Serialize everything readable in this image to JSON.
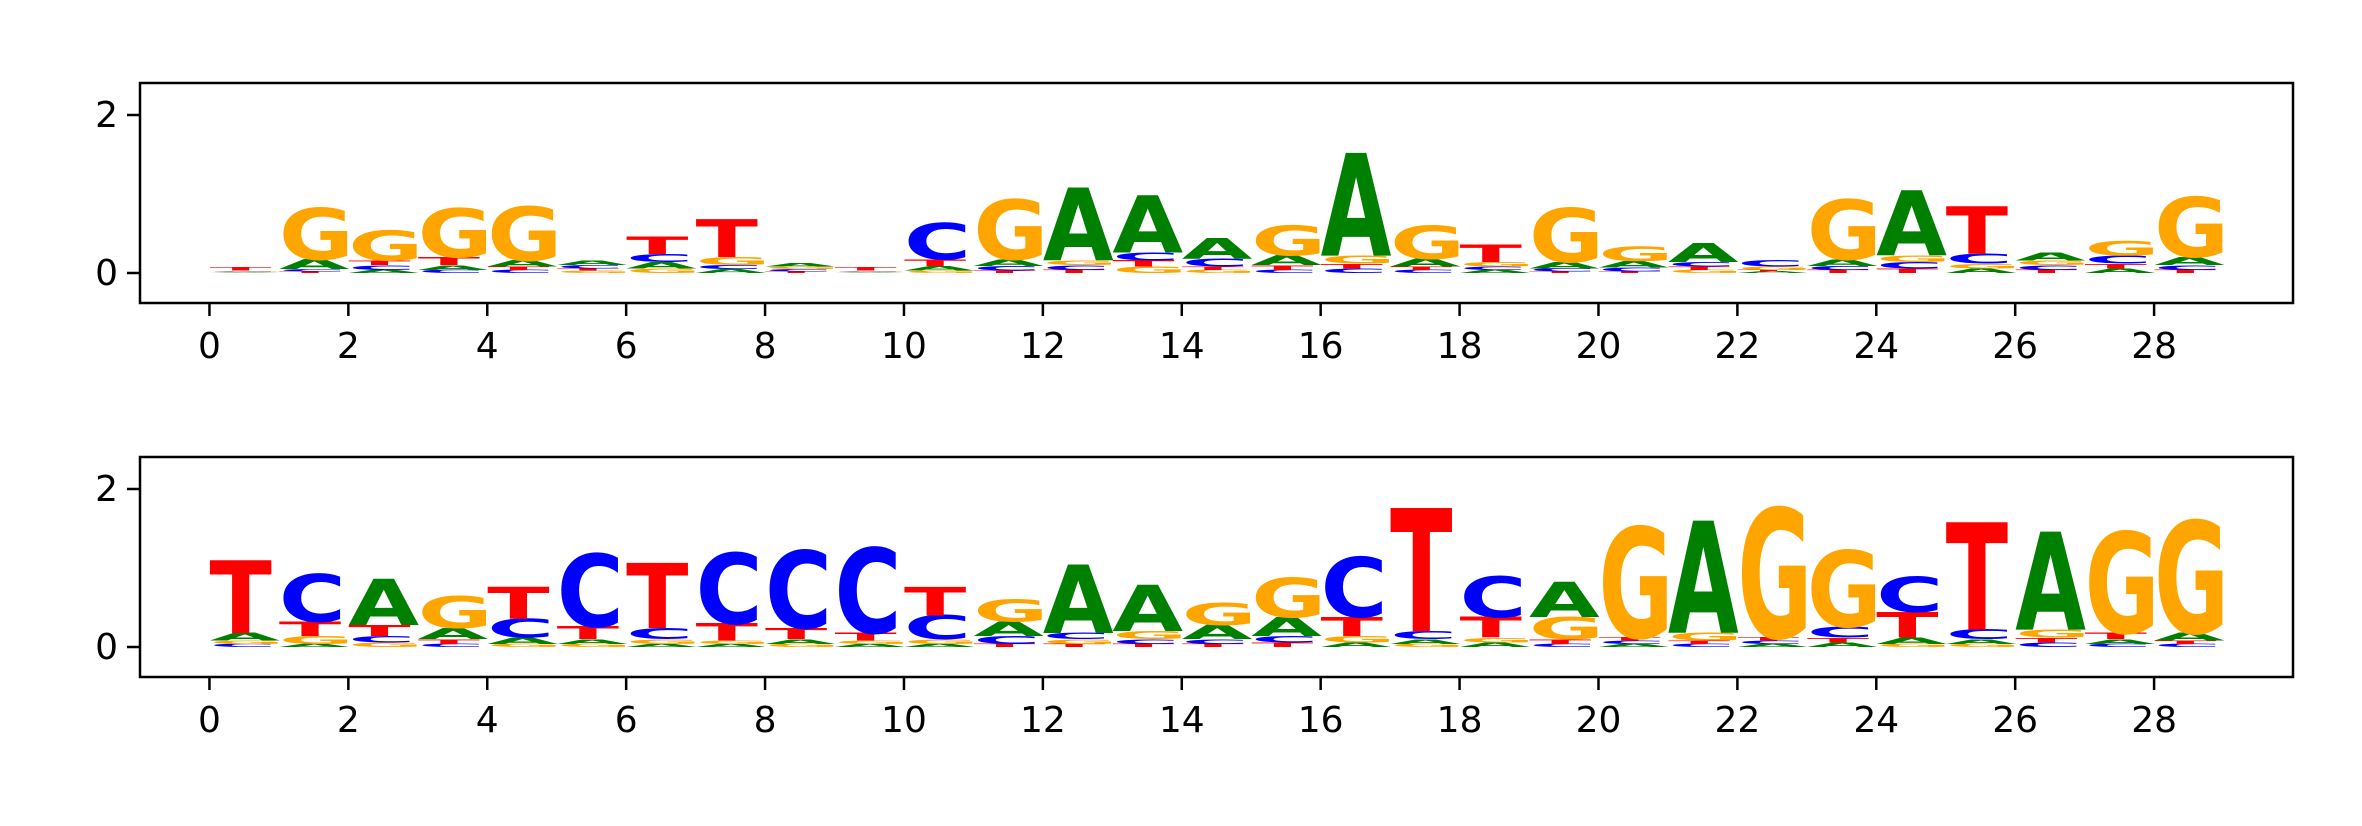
{
  "colors": {
    "A": "#008000",
    "C": "#0000ff",
    "G": "#ffa500",
    "T": "#ff0000"
  },
  "chart_data": [
    {
      "type": "sequence-logo",
      "panel": "top",
      "xlabel": "",
      "ylabel": "",
      "xlim": [
        -1,
        30
      ],
      "ylim": [
        -0.4,
        2.4
      ],
      "xticks": [
        "0",
        "2",
        "4",
        "6",
        "8",
        "10",
        "12",
        "14",
        "16",
        "18",
        "20",
        "22",
        "24",
        "26",
        "28"
      ],
      "yticks": [
        "0",
        "2"
      ],
      "positions": [
        [
          [
            "A",
            0.01
          ],
          [
            "C",
            0.01
          ],
          [
            "G",
            0.01
          ],
          [
            "T",
            0.04
          ]
        ],
        [
          [
            "A",
            0.12
          ],
          [
            "C",
            0.03
          ],
          [
            "G",
            0.65
          ],
          [
            "T",
            0.02
          ]
        ],
        [
          [
            "A",
            0.04
          ],
          [
            "C",
            0.06
          ],
          [
            "G",
            0.38
          ],
          [
            "T",
            0.06
          ]
        ],
        [
          [
            "A",
            0.06
          ],
          [
            "C",
            0.04
          ],
          [
            "G",
            0.62
          ],
          [
            "T",
            0.1
          ]
        ],
        [
          [
            "A",
            0.08
          ],
          [
            "C",
            0.04
          ],
          [
            "G",
            0.68
          ],
          [
            "T",
            0.04
          ]
        ],
        [
          [
            "A",
            0.06
          ],
          [
            "C",
            0.04
          ],
          [
            "G",
            0.03
          ],
          [
            "T",
            0.03
          ]
        ],
        [
          [
            "A",
            0.08
          ],
          [
            "C",
            0.1
          ],
          [
            "G",
            0.06
          ],
          [
            "T",
            0.22
          ]
        ],
        [
          [
            "A",
            0.05
          ],
          [
            "C",
            0.05
          ],
          [
            "G",
            0.1
          ],
          [
            "T",
            0.48
          ]
        ],
        [
          [
            "A",
            0.04
          ],
          [
            "C",
            0.03
          ],
          [
            "G",
            0.03
          ],
          [
            "T",
            0.02
          ]
        ],
        [
          [
            "A",
            0.01
          ],
          [
            "C",
            0.01
          ],
          [
            "G",
            0.01
          ],
          [
            "T",
            0.04
          ]
        ],
        [
          [
            "A",
            0.06
          ],
          [
            "C",
            0.46
          ],
          [
            "G",
            0.03
          ],
          [
            "T",
            0.08
          ]
        ],
        [
          [
            "A",
            0.08
          ],
          [
            "C",
            0.06
          ],
          [
            "G",
            0.76
          ],
          [
            "T",
            0.03
          ]
        ],
        [
          [
            "A",
            0.92
          ],
          [
            "C",
            0.06
          ],
          [
            "G",
            0.06
          ],
          [
            "T",
            0.04
          ]
        ],
        [
          [
            "A",
            0.72
          ],
          [
            "C",
            0.1
          ],
          [
            "G",
            0.08
          ],
          [
            "T",
            0.08
          ]
        ],
        [
          [
            "A",
            0.26
          ],
          [
            "C",
            0.1
          ],
          [
            "G",
            0.04
          ],
          [
            "T",
            0.04
          ]
        ],
        [
          [
            "A",
            0.12
          ],
          [
            "C",
            0.04
          ],
          [
            "G",
            0.38
          ],
          [
            "T",
            0.06
          ]
        ],
        [
          [
            "A",
            1.3
          ],
          [
            "C",
            0.06
          ],
          [
            "G",
            0.1
          ],
          [
            "T",
            0.06
          ]
        ],
        [
          [
            "A",
            0.1
          ],
          [
            "C",
            0.04
          ],
          [
            "G",
            0.42
          ],
          [
            "T",
            0.04
          ]
        ],
        [
          [
            "A",
            0.04
          ],
          [
            "C",
            0.04
          ],
          [
            "G",
            0.06
          ],
          [
            "T",
            0.22
          ]
        ],
        [
          [
            "A",
            0.08
          ],
          [
            "C",
            0.04
          ],
          [
            "G",
            0.68
          ],
          [
            "T",
            0.02
          ]
        ],
        [
          [
            "A",
            0.08
          ],
          [
            "C",
            0.05
          ],
          [
            "G",
            0.18
          ],
          [
            "T",
            0.02
          ]
        ],
        [
          [
            "A",
            0.24
          ],
          [
            "C",
            0.06
          ],
          [
            "G",
            0.04
          ],
          [
            "T",
            0.04
          ]
        ],
        [
          [
            "A",
            0.02
          ],
          [
            "C",
            0.08
          ],
          [
            "G",
            0.04
          ],
          [
            "T",
            0.02
          ]
        ],
        [
          [
            "A",
            0.08
          ],
          [
            "C",
            0.05
          ],
          [
            "G",
            0.76
          ],
          [
            "T",
            0.04
          ]
        ],
        [
          [
            "A",
            0.82
          ],
          [
            "C",
            0.08
          ],
          [
            "G",
            0.08
          ],
          [
            "T",
            0.06
          ]
        ],
        [
          [
            "A",
            0.06
          ],
          [
            "C",
            0.12
          ],
          [
            "G",
            0.06
          ],
          [
            "T",
            0.6
          ]
        ],
        [
          [
            "A",
            0.1
          ],
          [
            "C",
            0.06
          ],
          [
            "G",
            0.06
          ],
          [
            "T",
            0.04
          ]
        ],
        [
          [
            "A",
            0.06
          ],
          [
            "C",
            0.1
          ],
          [
            "G",
            0.18
          ],
          [
            "T",
            0.06
          ]
        ],
        [
          [
            "A",
            0.1
          ],
          [
            "C",
            0.06
          ],
          [
            "G",
            0.76
          ],
          [
            "T",
            0.04
          ]
        ]
      ]
    },
    {
      "type": "sequence-logo",
      "panel": "bottom",
      "xlabel": "",
      "ylabel": "",
      "xlim": [
        -1,
        30
      ],
      "ylim": [
        -0.4,
        2.4
      ],
      "xticks": [
        "0",
        "2",
        "4",
        "6",
        "8",
        "10",
        "12",
        "14",
        "16",
        "18",
        "20",
        "22",
        "24",
        "26",
        "28"
      ],
      "yticks": [
        "0",
        "2"
      ],
      "positions": [
        [
          [
            "A",
            0.1
          ],
          [
            "C",
            0.04
          ],
          [
            "G",
            0.04
          ],
          [
            "T",
            0.92
          ]
        ],
        [
          [
            "A",
            0.04
          ],
          [
            "C",
            0.6
          ],
          [
            "G",
            0.1
          ],
          [
            "T",
            0.18
          ]
        ],
        [
          [
            "A",
            0.58
          ],
          [
            "C",
            0.08
          ],
          [
            "G",
            0.06
          ],
          [
            "T",
            0.14
          ]
        ],
        [
          [
            "A",
            0.14
          ],
          [
            "C",
            0.04
          ],
          [
            "G",
            0.4
          ],
          [
            "T",
            0.06
          ]
        ],
        [
          [
            "A",
            0.08
          ],
          [
            "C",
            0.24
          ],
          [
            "G",
            0.04
          ],
          [
            "T",
            0.4
          ]
        ],
        [
          [
            "A",
            0.06
          ],
          [
            "C",
            0.92
          ],
          [
            "G",
            0.04
          ],
          [
            "T",
            0.16
          ]
        ],
        [
          [
            "A",
            0.04
          ],
          [
            "C",
            0.14
          ],
          [
            "G",
            0.06
          ],
          [
            "T",
            0.82
          ]
        ],
        [
          [
            "A",
            0.04
          ],
          [
            "C",
            0.9
          ],
          [
            "G",
            0.04
          ],
          [
            "T",
            0.22
          ]
        ],
        [
          [
            "A",
            0.06
          ],
          [
            "C",
            0.98
          ],
          [
            "G",
            0.04
          ],
          [
            "T",
            0.14
          ]
        ],
        [
          [
            "A",
            0.04
          ],
          [
            "C",
            1.08
          ],
          [
            "G",
            0.04
          ],
          [
            "T",
            0.1
          ]
        ],
        [
          [
            "A",
            0.04
          ],
          [
            "C",
            0.3
          ],
          [
            "G",
            0.06
          ],
          [
            "T",
            0.36
          ]
        ],
        [
          [
            "A",
            0.18
          ],
          [
            "C",
            0.1
          ],
          [
            "G",
            0.28
          ],
          [
            "T",
            0.04
          ]
        ],
        [
          [
            "A",
            0.86
          ],
          [
            "C",
            0.08
          ],
          [
            "G",
            0.06
          ],
          [
            "T",
            0.04
          ]
        ],
        [
          [
            "A",
            0.58
          ],
          [
            "C",
            0.06
          ],
          [
            "G",
            0.1
          ],
          [
            "T",
            0.04
          ]
        ],
        [
          [
            "A",
            0.18
          ],
          [
            "C",
            0.06
          ],
          [
            "G",
            0.28
          ],
          [
            "T",
            0.04
          ]
        ],
        [
          [
            "A",
            0.24
          ],
          [
            "C",
            0.08
          ],
          [
            "G",
            0.5
          ],
          [
            "T",
            0.06
          ]
        ],
        [
          [
            "A",
            0.06
          ],
          [
            "C",
            0.76
          ],
          [
            "G",
            0.08
          ],
          [
            "T",
            0.24
          ]
        ],
        [
          [
            "A",
            0.06
          ],
          [
            "C",
            0.1
          ],
          [
            "G",
            0.04
          ],
          [
            "T",
            1.56
          ]
        ],
        [
          [
            "A",
            0.06
          ],
          [
            "C",
            0.52
          ],
          [
            "G",
            0.06
          ],
          [
            "T",
            0.26
          ]
        ],
        [
          [
            "A",
            0.44
          ],
          [
            "C",
            0.04
          ],
          [
            "G",
            0.28
          ],
          [
            "T",
            0.06
          ]
        ],
        [
          [
            "A",
            0.04
          ],
          [
            "C",
            0.04
          ],
          [
            "G",
            1.4
          ],
          [
            "T",
            0.04
          ]
        ],
        [
          [
            "A",
            1.42
          ],
          [
            "C",
            0.04
          ],
          [
            "G",
            0.1
          ],
          [
            "T",
            0.04
          ]
        ],
        [
          [
            "A",
            0.04
          ],
          [
            "C",
            0.04
          ],
          [
            "G",
            1.64
          ],
          [
            "T",
            0.04
          ]
        ],
        [
          [
            "A",
            0.06
          ],
          [
            "C",
            0.14
          ],
          [
            "G",
            0.96
          ],
          [
            "T",
            0.06
          ]
        ],
        [
          [
            "A",
            0.08
          ],
          [
            "C",
            0.44
          ],
          [
            "G",
            0.04
          ],
          [
            "T",
            0.32
          ]
        ],
        [
          [
            "A",
            0.06
          ],
          [
            "C",
            0.12
          ],
          [
            "G",
            0.04
          ],
          [
            "T",
            1.36
          ]
        ],
        [
          [
            "A",
            1.24
          ],
          [
            "C",
            0.06
          ],
          [
            "G",
            0.1
          ],
          [
            "T",
            0.06
          ]
        ],
        [
          [
            "A",
            0.06
          ],
          [
            "C",
            0.04
          ],
          [
            "G",
            1.28
          ],
          [
            "T",
            0.08
          ]
        ],
        [
          [
            "A",
            0.1
          ],
          [
            "C",
            0.04
          ],
          [
            "G",
            1.42
          ],
          [
            "T",
            0.04
          ]
        ]
      ]
    }
  ]
}
